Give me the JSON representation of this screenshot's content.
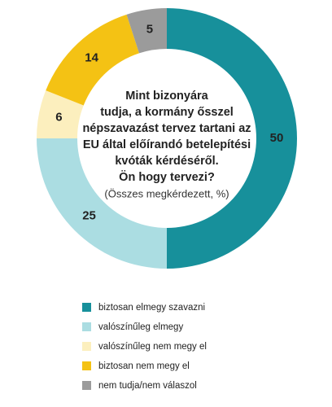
{
  "chart_data": {
    "type": "donut",
    "title": [
      "Mint bizonyára",
      "tudja, a kormány ősszel",
      "népszavazást tervez tartani az",
      "EU által előírandó betelepítési",
      "kvóták kérdéséről.",
      "Ön hogy tervezi?"
    ],
    "subtitle": "(Összes megkérdezett, %)",
    "categories": [
      "biztosan elmegy szavazni",
      "valószínűleg elmegy",
      "valószínűleg nem megy el",
      "biztosan nem megy el",
      "nem tudja/nem válaszol"
    ],
    "values": [
      50,
      25,
      6,
      14,
      5
    ],
    "colors": [
      "#17909b",
      "#abdde2",
      "#fcefbe",
      "#f4c214",
      "#9b9b9b"
    ],
    "legend": "bottom"
  }
}
